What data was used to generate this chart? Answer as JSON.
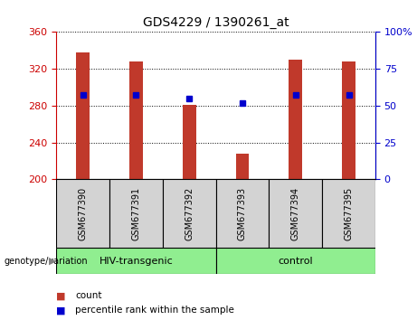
{
  "title": "GDS4229 / 1390261_at",
  "samples": [
    "GSM677390",
    "GSM677391",
    "GSM677392",
    "GSM677393",
    "GSM677394",
    "GSM677395"
  ],
  "counts": [
    338,
    328,
    281,
    228,
    330,
    328
  ],
  "percentile_ranks": [
    57,
    57,
    55,
    52,
    57,
    57
  ],
  "ylim_left": [
    200,
    360
  ],
  "ylim_right": [
    0,
    100
  ],
  "yticks_left": [
    200,
    240,
    280,
    320,
    360
  ],
  "yticks_right": [
    0,
    25,
    50,
    75,
    100
  ],
  "bar_color": "#c0392b",
  "dot_color": "#0000cd",
  "bar_width": 0.25,
  "background_plot": "#ffffff",
  "left_axis_color": "#cc0000",
  "right_axis_color": "#0000cc",
  "legend_items": [
    "count",
    "percentile rank within the sample"
  ],
  "genotype_label": "genotype/variation",
  "group_labels": [
    "HIV-transgenic",
    "control"
  ],
  "group_color": "#90ee90",
  "sample_box_color": "#d3d3d3"
}
